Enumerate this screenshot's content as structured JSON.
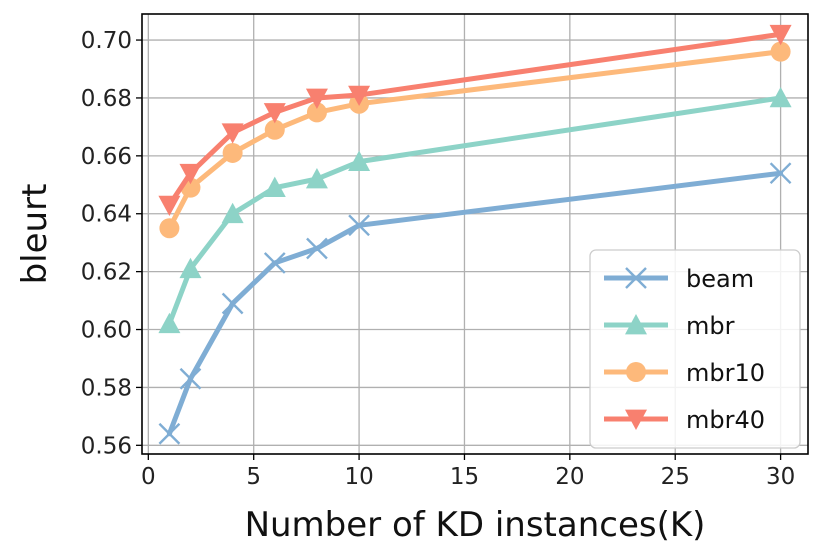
{
  "chart_data": {
    "type": "line",
    "title": "",
    "xlabel": "Number of KD instances(K)",
    "ylabel": "bleurt",
    "xlim": [
      -0.3,
      31.3
    ],
    "ylim": [
      0.557,
      0.709
    ],
    "xticks": [
      0,
      5,
      10,
      15,
      20,
      25,
      30
    ],
    "xtick_labels": [
      "0",
      "5",
      "10",
      "15",
      "20",
      "25",
      "30"
    ],
    "yticks": [
      0.56,
      0.58,
      0.6,
      0.62,
      0.64,
      0.66,
      0.68,
      0.7
    ],
    "ytick_labels": [
      "0.56",
      "0.58",
      "0.60",
      "0.62",
      "0.64",
      "0.66",
      "0.68",
      "0.70"
    ],
    "grid": true,
    "legend_position": "lower-right",
    "x": [
      1,
      2,
      4,
      6,
      8,
      10,
      30
    ],
    "series": [
      {
        "name": "beam",
        "marker": "x",
        "color": "#7fadd4",
        "values": [
          0.564,
          0.583,
          0.609,
          0.623,
          0.628,
          0.636,
          0.654
        ]
      },
      {
        "name": "mbr",
        "marker": "triangle-up",
        "color": "#8dd3c7",
        "values": [
          0.602,
          0.621,
          0.64,
          0.649,
          0.652,
          0.658,
          0.68
        ]
      },
      {
        "name": "mbr10",
        "marker": "circle",
        "color": "#fdb97b",
        "values": [
          0.635,
          0.649,
          0.661,
          0.669,
          0.675,
          0.678,
          0.696
        ]
      },
      {
        "name": "mbr40",
        "marker": "triangle-down",
        "color": "#f8806f",
        "values": [
          0.643,
          0.654,
          0.668,
          0.675,
          0.68,
          0.681,
          0.702
        ]
      }
    ]
  }
}
